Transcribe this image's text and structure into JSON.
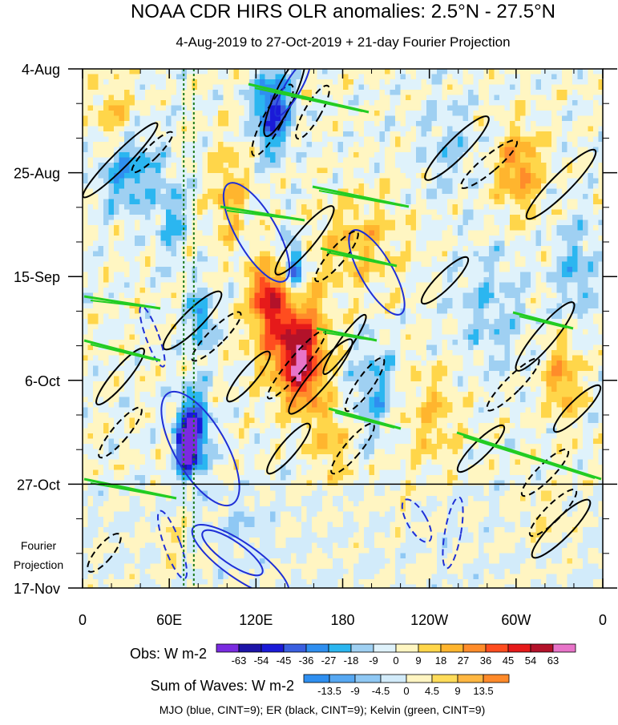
{
  "title": "NOAA CDR HIRS OLR anomalies: 2.5°N - 27.5°N",
  "subtitle": "4-Aug-2019 to 27-Oct-2019 + 21-day Fourier Projection",
  "chart_data": {
    "type": "heatmap",
    "description_type": "Hovmoller time-longitude diagram",
    "x_tick_labels": [
      "0",
      "60E",
      "120E",
      "180",
      "120W",
      "60W",
      "0"
    ],
    "x_ticks_deg": [
      0,
      60,
      120,
      180,
      240,
      300,
      360
    ],
    "xlim": [
      0,
      360
    ],
    "y_tick_labels": [
      "4-Aug",
      "25-Aug",
      "15-Sep",
      "6-Oct",
      "27-Oct",
      "17-Nov"
    ],
    "y_ticks_day": [
      0,
      21,
      42,
      63,
      84,
      105
    ],
    "ylim_day": [
      0,
      105
    ],
    "observation_end_day": 84,
    "projection_label_line1": "Fourier",
    "projection_label_line2": "Projection",
    "reference_lines_deg": [
      70,
      77
    ],
    "obs_colorbar": {
      "label": "Obs: W m-2",
      "levels": [
        "-63",
        "-54",
        "-45",
        "-36",
        "-27",
        "-18",
        "-9",
        "0",
        "9",
        "18",
        "27",
        "36",
        "45",
        "54",
        "63"
      ],
      "colors": [
        "#7a2be0",
        "#1d14a8",
        "#1a1ad8",
        "#3a5fe0",
        "#2f8ff0",
        "#2bb6f0",
        "#9fd0f2",
        "#dff2fb",
        "#fff6c2",
        "#ffd64a",
        "#ffb52e",
        "#ff8c2a",
        "#ff4d1f",
        "#e61a1a",
        "#b3122a",
        "#e874c9"
      ]
    },
    "wave_colorbar": {
      "label": "Sum of Waves: W m-2",
      "levels": [
        "-13.5",
        "-9",
        "-4.5",
        "0",
        "4.5",
        "9",
        "13.5"
      ],
      "colors": [
        "#2f8ff0",
        "#57a8f2",
        "#8fc8f4",
        "#d2ebfa",
        "#fff5c2",
        "#ffdc5a",
        "#ffb742",
        "#ff8a2a"
      ]
    },
    "footnote": "MJO (blue, CINT=9); ER (black, CINT=9); Kelvin (green, CINT=9)",
    "wave_series": [
      {
        "name": "MJO",
        "color": "#1f2fd6"
      },
      {
        "name": "ER",
        "color": "#000000"
      },
      {
        "name": "Kelvin",
        "color": "#22cc22"
      }
    ]
  }
}
